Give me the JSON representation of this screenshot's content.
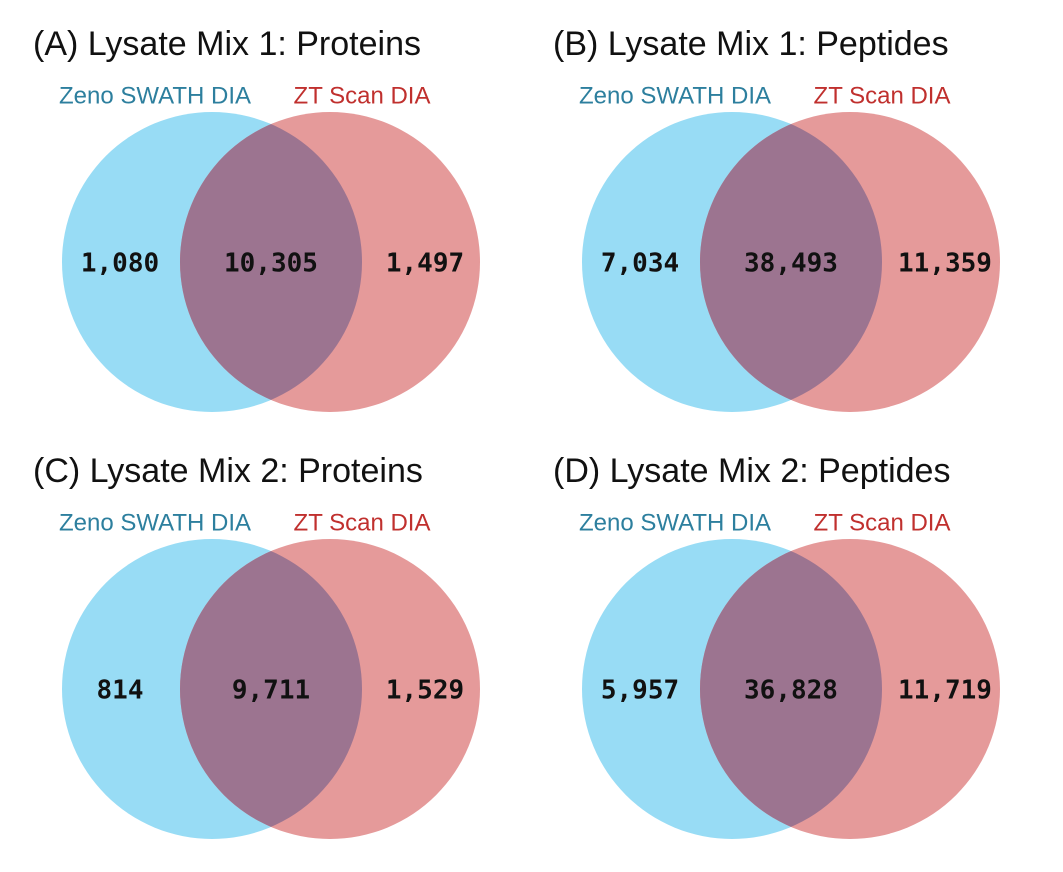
{
  "chart_data": [
    {
      "type": "venn",
      "title": "(A) Lysate Mix 1: Proteins",
      "sets": [
        {
          "name": "Zeno SWATH DIA",
          "color": "#98dcf5"
        },
        {
          "name": "ZT Scan DIA",
          "color": "#e59a9a"
        }
      ],
      "overlap_color": "#9c7490",
      "values": [
        1080,
        10305,
        1497
      ],
      "value_labels": [
        "1,080",
        "10,305",
        "1,497"
      ]
    },
    {
      "type": "venn",
      "title": "(B) Lysate Mix 1: Peptides",
      "sets": [
        {
          "name": "Zeno SWATH DIA",
          "color": "#98dcf5"
        },
        {
          "name": "ZT Scan DIA",
          "color": "#e59a9a"
        }
      ],
      "overlap_color": "#9c7490",
      "values": [
        7034,
        38493,
        11359
      ],
      "value_labels": [
        "7,034",
        "38,493",
        "11,359"
      ]
    },
    {
      "type": "venn",
      "title": "(C) Lysate Mix 2: Proteins",
      "sets": [
        {
          "name": "Zeno SWATH DIA",
          "color": "#98dcf5"
        },
        {
          "name": "ZT Scan DIA",
          "color": "#e59a9a"
        }
      ],
      "overlap_color": "#9c7490",
      "values": [
        814,
        9711,
        1529
      ],
      "value_labels": [
        "814",
        "9,711",
        "1,529"
      ]
    },
    {
      "type": "venn",
      "title": "(D) Lysate Mix 2: Peptides",
      "sets": [
        {
          "name": "Zeno SWATH DIA",
          "color": "#98dcf5"
        },
        {
          "name": "ZT Scan DIA",
          "color": "#e59a9a"
        }
      ],
      "overlap_color": "#9c7490",
      "values": [
        5957,
        36828,
        11719
      ],
      "value_labels": [
        "5,957",
        "36,828",
        "11,719"
      ]
    }
  ]
}
